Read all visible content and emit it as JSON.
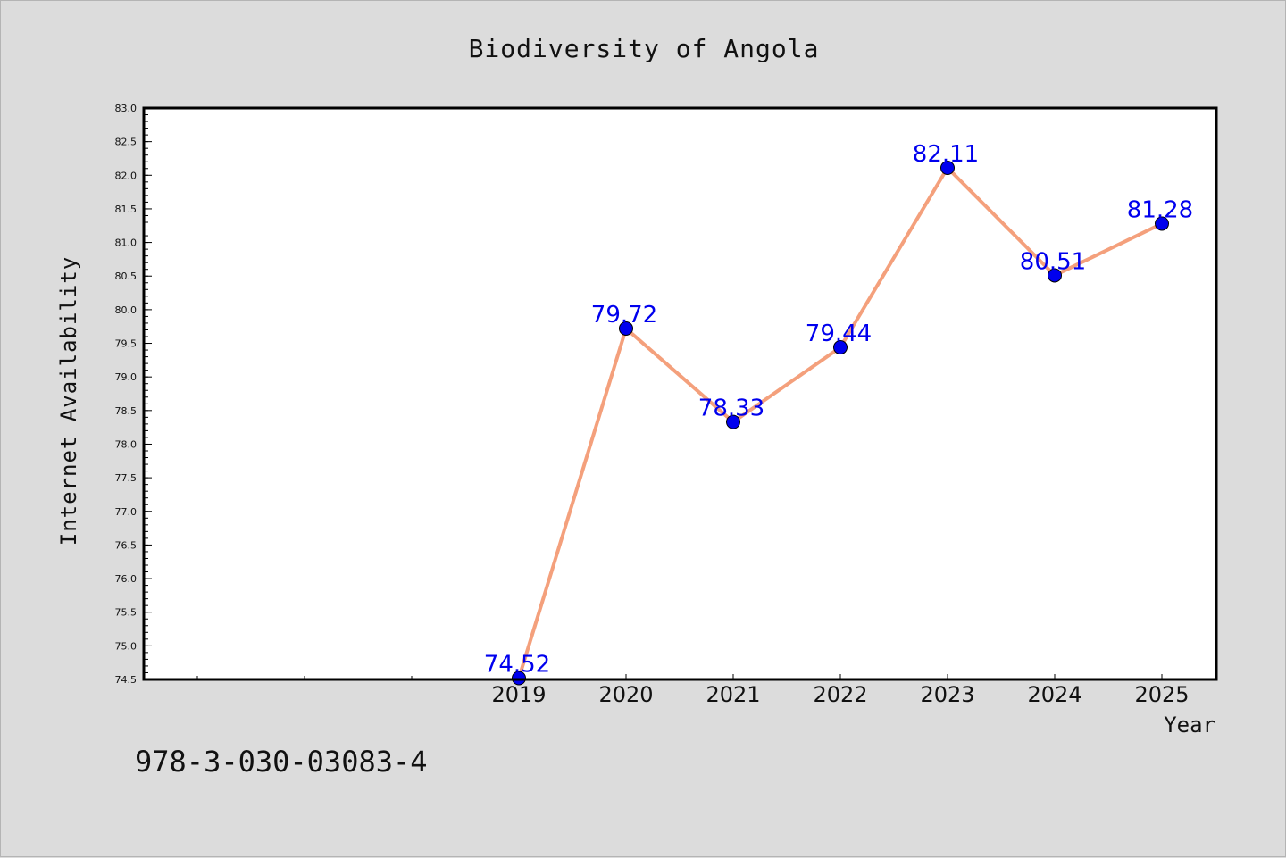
{
  "chart_data": {
    "type": "line",
    "title": "Biodiversity of Angola",
    "xlabel": "Year",
    "ylabel": "Internet Availability",
    "categories": [
      "2019",
      "2020",
      "2021",
      "2022",
      "2023",
      "2024",
      "2025"
    ],
    "series": [
      {
        "values": [
          74.52,
          79.72,
          78.33,
          79.44,
          82.11,
          80.51,
          81.28
        ]
      }
    ],
    "data_labels": [
      "74.52",
      "79.72",
      "78.33",
      "79.44",
      "82.11",
      "80.51",
      "81.28"
    ],
    "ylim": [
      74.5,
      83.0
    ],
    "y_ticks": [
      "74.5",
      "75.0",
      "75.5",
      "76.0",
      "76.5",
      "77.0",
      "77.5",
      "78.0",
      "78.5",
      "79.0",
      "79.5",
      "80.0",
      "80.5",
      "81.0",
      "81.5",
      "82.0",
      "82.5",
      "83.0"
    ],
    "grid": false,
    "legend": "none",
    "colors": {
      "line": "#f4a07c",
      "marker": "#0000ee",
      "label": "#0000ee"
    }
  },
  "footer": {
    "code": "978-3-030-03083-4"
  }
}
